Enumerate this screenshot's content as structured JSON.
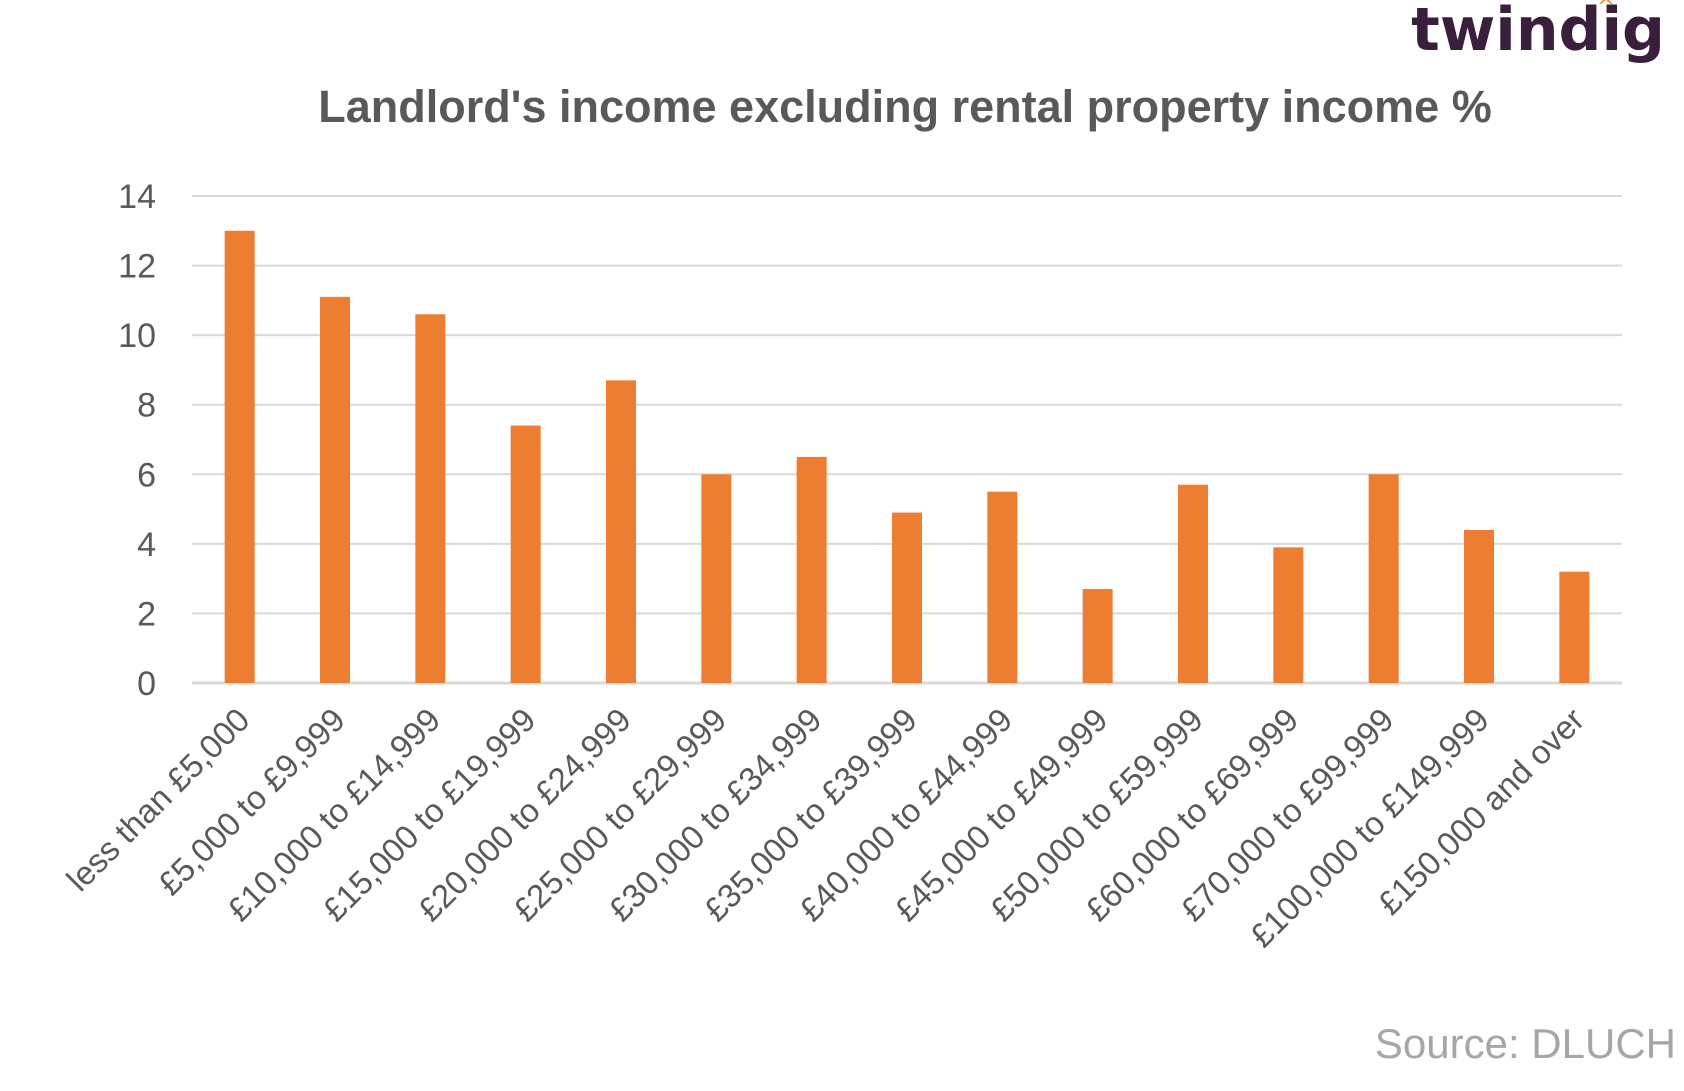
{
  "brand": {
    "name": "twindig",
    "text_color": "#3a1f3d",
    "accent_color": "#f28c28"
  },
  "source": "Source: DLUCH",
  "colors": {
    "bar": "#ed7d31",
    "gridline": "#d9d9d9",
    "axis_text": "#595959",
    "title": "#595959",
    "source_text": "#a6a6a6"
  },
  "chart_data": {
    "type": "bar",
    "title": "Landlord's income excluding rental property income %",
    "xlabel": "",
    "ylabel": "",
    "ylim": [
      0,
      14
    ],
    "yticks": [
      0,
      2,
      4,
      6,
      8,
      10,
      12,
      14
    ],
    "grid": true,
    "legend": "none",
    "categories": [
      "less than £5,000",
      "£5,000 to £9,999",
      "£10,000 to £14,999",
      "£15,000 to £19,999",
      "£20,000 to £24,999",
      "£25,000 to £29,999",
      "£30,000 to £34,999",
      "£35,000 to £39,999",
      "£40,000 to £44,999",
      "£45,000 to £49,999",
      "£50,000 to £59,999",
      "£60,000 to £69,999",
      "£70,000 to £99,999",
      "£100,000 to £149,999",
      "£150,000 and over"
    ],
    "values": [
      13.0,
      11.1,
      10.6,
      7.4,
      8.7,
      6.0,
      6.5,
      4.9,
      5.5,
      2.7,
      5.7,
      3.9,
      6.0,
      4.4,
      3.2
    ]
  }
}
